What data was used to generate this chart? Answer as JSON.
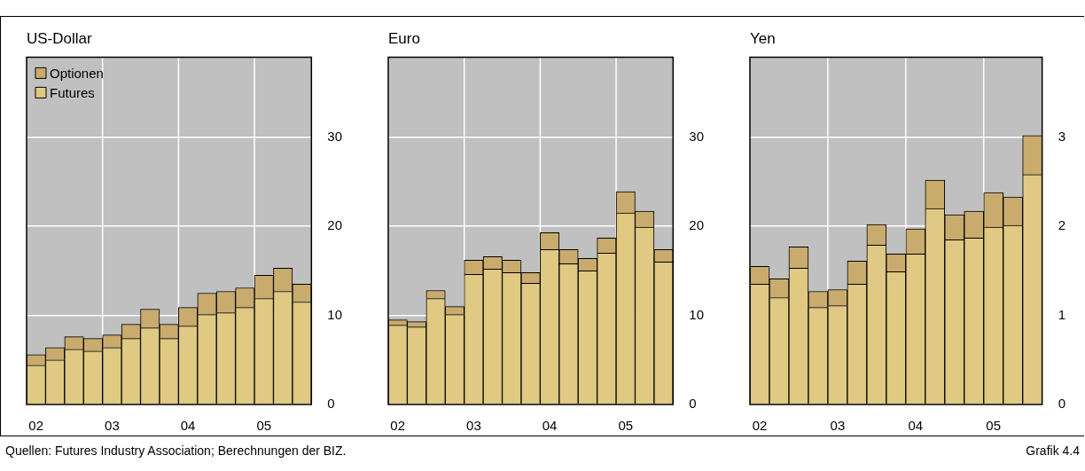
{
  "chart_data": [
    {
      "type": "bar",
      "title": "US-Dollar",
      "stacked": true,
      "grid": true,
      "legend": "top left",
      "categories": [
        "02",
        null,
        null,
        null,
        "03",
        null,
        null,
        null,
        "04",
        null,
        null,
        null,
        "05",
        null,
        null
      ],
      "ylim": [
        0,
        39
      ],
      "yticks": [
        0,
        10,
        20,
        30
      ],
      "series": [
        {
          "name": "Futures",
          "color": "#dfc983",
          "values": [
            4.4,
            5.0,
            6.2,
            6.0,
            6.4,
            7.4,
            8.6,
            7.4,
            8.8,
            10.1,
            10.3,
            10.9,
            11.9,
            12.7,
            11.5
          ]
        },
        {
          "name": "Optionen",
          "color": "#c9ab6e",
          "values": [
            1.2,
            1.4,
            1.4,
            1.4,
            1.4,
            1.6,
            2.1,
            1.6,
            2.1,
            2.4,
            2.4,
            2.2,
            2.6,
            2.6,
            2.0
          ]
        }
      ]
    },
    {
      "type": "bar",
      "title": "Euro",
      "stacked": true,
      "grid": true,
      "categories": [
        "02",
        null,
        null,
        null,
        "03",
        null,
        null,
        null,
        "04",
        null,
        null,
        null,
        "05",
        null,
        null
      ],
      "ylim": [
        0,
        39
      ],
      "yticks": [
        0,
        10,
        20,
        30
      ],
      "series": [
        {
          "color": "#dfc983",
          "values": [
            8.9,
            8.7,
            11.9,
            10.1,
            14.6,
            15.2,
            14.8,
            13.6,
            17.4,
            15.8,
            15.0,
            17.0,
            21.5,
            19.9,
            16.0
          ]
        },
        {
          "color": "#c9ab6e",
          "values": [
            0.6,
            0.6,
            0.9,
            0.9,
            1.6,
            1.4,
            1.4,
            1.2,
            1.9,
            1.6,
            1.4,
            1.7,
            2.4,
            1.8,
            1.4
          ]
        }
      ]
    },
    {
      "type": "bar",
      "title": "Yen",
      "stacked": true,
      "grid": true,
      "categories": [
        "02",
        null,
        null,
        null,
        "03",
        null,
        null,
        null,
        "04",
        null,
        null,
        null,
        "05",
        null,
        null
      ],
      "ylim": [
        0,
        3.9
      ],
      "yticks": [
        0,
        1,
        2,
        3
      ],
      "series": [
        {
          "color": "#dfc983",
          "values": [
            1.35,
            1.2,
            1.53,
            1.09,
            1.11,
            1.35,
            1.79,
            1.49,
            1.69,
            2.2,
            1.85,
            1.87,
            1.99,
            2.01,
            2.58
          ]
        },
        {
          "color": "#c9ab6e",
          "values": [
            0.2,
            0.21,
            0.24,
            0.18,
            0.18,
            0.26,
            0.23,
            0.2,
            0.28,
            0.32,
            0.28,
            0.3,
            0.39,
            0.32,
            0.44
          ]
        }
      ],
      "annotations": [
        "Quellen: Futures Industry Association; Berechnungen der BIZ.",
        "Grafik 4.4"
      ]
    }
  ]
}
